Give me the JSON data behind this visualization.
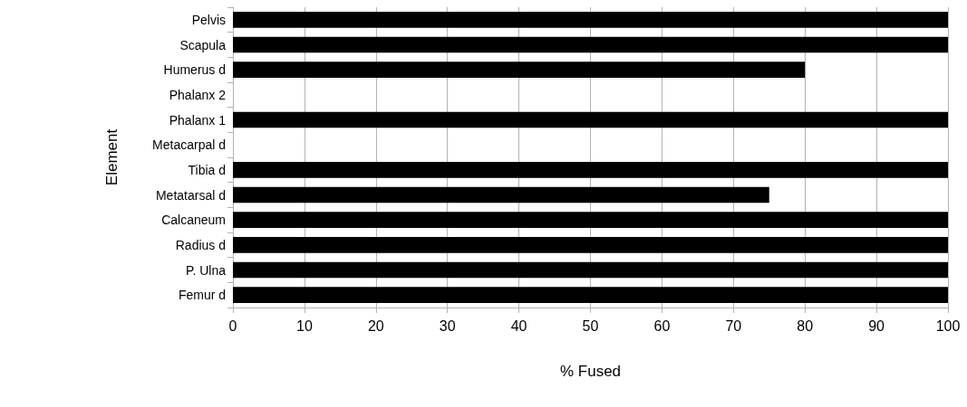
{
  "chart_data": {
    "type": "bar",
    "orientation": "horizontal",
    "xlabel": "% Fused",
    "ylabel": "Element",
    "categories": [
      "Pelvis",
      "Scapula",
      "Humerus d",
      "Phalanx 2",
      "Phalanx 1",
      "Metacarpal d",
      "Tibia d",
      "Metatarsal d",
      "Calcaneum",
      "Radius d",
      "P. Ulna",
      "Femur d"
    ],
    "values": [
      100,
      100,
      80,
      0,
      100,
      0,
      100,
      75,
      100,
      100,
      100,
      100
    ],
    "color": "#000000",
    "xlim": [
      0,
      100
    ],
    "xticks": [
      0,
      10,
      20,
      30,
      40,
      50,
      60,
      70,
      80,
      90,
      100
    ],
    "grid": "x"
  }
}
